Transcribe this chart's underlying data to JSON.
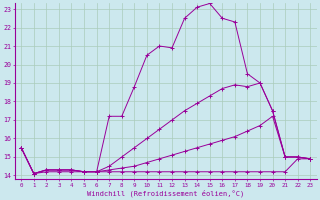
{
  "xlabel": "Windchill (Refroidissement éolien,°C)",
  "bg_color": "#cce8ee",
  "line_color": "#990099",
  "grid_color": "#aaccbb",
  "xlim": [
    -0.5,
    23.5
  ],
  "ylim": [
    13.8,
    23.3
  ],
  "xticks": [
    0,
    1,
    2,
    3,
    4,
    5,
    6,
    7,
    8,
    9,
    10,
    11,
    12,
    13,
    14,
    15,
    16,
    17,
    18,
    19,
    20,
    21,
    22,
    23
  ],
  "yticks": [
    14,
    15,
    16,
    17,
    18,
    19,
    20,
    21,
    22,
    23
  ],
  "lines": [
    {
      "x": [
        0,
        1,
        2,
        3,
        4,
        5,
        6,
        7,
        8,
        9,
        10,
        11,
        12,
        13,
        14,
        15,
        16,
        17,
        18,
        19,
        20,
        21,
        22,
        23
      ],
      "y": [
        15.5,
        14.1,
        14.3,
        14.3,
        14.3,
        14.2,
        14.2,
        17.2,
        17.2,
        18.8,
        20.5,
        21.0,
        20.9,
        22.5,
        23.1,
        23.3,
        22.5,
        22.3,
        19.5,
        19.0,
        17.5,
        15.0,
        15.0,
        14.9
      ],
      "marker": "+"
    },
    {
      "x": [
        0,
        1,
        2,
        3,
        4,
        5,
        6,
        7,
        8,
        9,
        10,
        11,
        12,
        13,
        14,
        15,
        16,
        17,
        18,
        19,
        20,
        21,
        22,
        23
      ],
      "y": [
        15.5,
        14.1,
        14.3,
        14.3,
        14.3,
        14.2,
        14.2,
        14.5,
        15.0,
        15.5,
        16.0,
        16.5,
        17.0,
        17.5,
        17.9,
        18.3,
        18.7,
        18.9,
        18.8,
        19.0,
        17.5,
        15.0,
        15.0,
        14.9
      ],
      "marker": "+"
    },
    {
      "x": [
        0,
        1,
        2,
        3,
        4,
        5,
        6,
        7,
        8,
        9,
        10,
        11,
        12,
        13,
        14,
        15,
        16,
        17,
        18,
        19,
        20,
        21,
        22,
        23
      ],
      "y": [
        15.5,
        14.1,
        14.3,
        14.3,
        14.3,
        14.2,
        14.2,
        14.3,
        14.4,
        14.5,
        14.7,
        14.9,
        15.1,
        15.3,
        15.5,
        15.7,
        15.9,
        16.1,
        16.4,
        16.7,
        17.2,
        15.0,
        15.0,
        14.9
      ],
      "marker": "+"
    },
    {
      "x": [
        0,
        1,
        2,
        3,
        4,
        5,
        6,
        7,
        8,
        9,
        10,
        11,
        12,
        13,
        14,
        15,
        16,
        17,
        18,
        19,
        20,
        21,
        22,
        23
      ],
      "y": [
        15.5,
        14.1,
        14.2,
        14.2,
        14.2,
        14.2,
        14.2,
        14.2,
        14.2,
        14.2,
        14.2,
        14.2,
        14.2,
        14.2,
        14.2,
        14.2,
        14.2,
        14.2,
        14.2,
        14.2,
        14.2,
        14.2,
        14.9,
        14.9
      ],
      "marker": "+"
    }
  ]
}
